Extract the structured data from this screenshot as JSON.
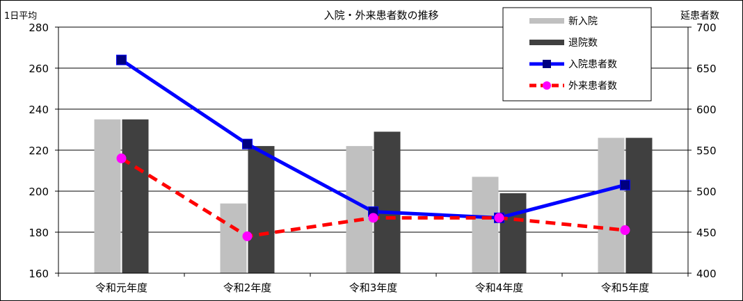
{
  "chart_data": {
    "type": "bar",
    "title": "入院・外来患者数の推移",
    "left_axis_label": "1日平均",
    "right_axis_label": "延患者数",
    "categories": [
      "令和元年度",
      "令和2年度",
      "令和3年度",
      "令和4年度",
      "令和5年度"
    ],
    "ylim_left": [
      160,
      280
    ],
    "yticks_left": [
      "160",
      "180",
      "200",
      "220",
      "240",
      "260",
      "280"
    ],
    "ylim_right": [
      400,
      700
    ],
    "yticks_right": [
      "400",
      "450",
      "500",
      "550",
      "600",
      "650",
      "700"
    ],
    "bar_series": [
      {
        "name": "新入院",
        "axis": "left",
        "color": "#c0c0c0",
        "values": [
          235,
          194,
          222,
          207,
          226
        ]
      },
      {
        "name": "退院数",
        "axis": "left",
        "color": "#404040",
        "values": [
          235,
          222,
          229,
          199,
          226
        ]
      }
    ],
    "line_series": [
      {
        "name": "入院患者数",
        "axis": "left",
        "color": "#0000ff",
        "style": "solid",
        "marker": "square",
        "values": [
          264,
          223,
          190,
          187,
          203
        ]
      },
      {
        "name": "外来患者数",
        "axis": "left",
        "color": "#ff0000",
        "marker_color": "#ff00ff",
        "style": "dashed",
        "marker": "circle",
        "values": [
          216,
          178,
          187,
          187,
          181
        ]
      }
    ],
    "grid": true,
    "legend_position": "top-right"
  }
}
